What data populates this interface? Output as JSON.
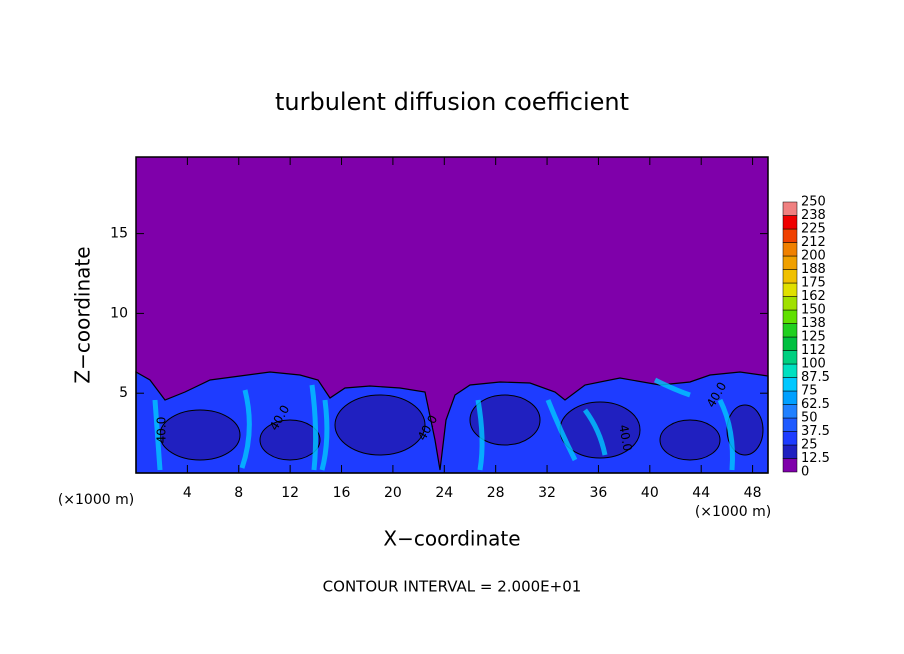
{
  "chart_data": {
    "type": "contour",
    "title": "turbulent diffusion coefficient",
    "xlabel": "X−coordinate",
    "ylabel": "Z−coordinate",
    "unit_label": "(×1000 m)",
    "footnote": "CONTOUR INTERVAL = 2.000E+01",
    "xlim": [
      0,
      49.2
    ],
    "ylim": [
      0,
      19.8
    ],
    "xticks": [
      4,
      8,
      12,
      16,
      20,
      24,
      28,
      32,
      36,
      40,
      44,
      48
    ],
    "yticks": [
      5,
      10,
      15
    ],
    "contour_labels": [
      "40.0",
      "40.0",
      "40.0",
      "40.0",
      "40.0"
    ],
    "colorbar": {
      "levels": [
        0,
        12.5,
        25,
        37.5,
        50,
        62.5,
        75,
        87.5,
        100,
        112,
        125,
        138,
        150,
        162,
        175,
        188,
        200,
        212,
        225,
        238,
        250
      ],
      "colors": [
        "#7f00aa",
        "#2020c0",
        "#1e3cff",
        "#1e5aff",
        "#2080ff",
        "#00a0ff",
        "#00c8ff",
        "#00e0c0",
        "#00d080",
        "#00c040",
        "#20d020",
        "#60e000",
        "#a0e000",
        "#e0e000",
        "#f0c000",
        "#f0a000",
        "#f08000",
        "#f04000",
        "#f00000",
        "#f08080"
      ]
    }
  }
}
